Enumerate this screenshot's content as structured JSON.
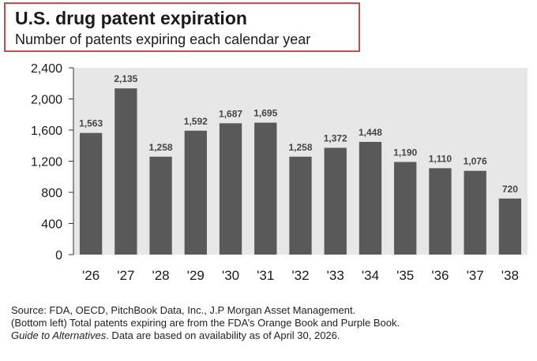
{
  "header": {
    "title": "U.S. drug patent expiration",
    "subtitle": "Number of patents expiring each calendar year"
  },
  "chart_data": {
    "type": "bar",
    "title": "U.S. drug patent expiration",
    "subtitle": "Number of patents expiring each calendar year",
    "categories": [
      "'26",
      "'27",
      "'28",
      "'29",
      "'30",
      "'31",
      "'32",
      "'33",
      "'34",
      "'35",
      "'36",
      "'37",
      "'38"
    ],
    "values": [
      1563,
      2135,
      1258,
      1592,
      1687,
      1695,
      1258,
      1372,
      1448,
      1190,
      1110,
      1076,
      720
    ],
    "data_labels": [
      "1,563",
      "2,135",
      "1,258",
      "1,592",
      "1,687",
      "1,695",
      "1,258",
      "1,372",
      "1,448",
      "1,190",
      "1,110",
      "1,076",
      "720"
    ],
    "yticks": [
      0,
      400,
      800,
      1200,
      1600,
      2000,
      2400
    ],
    "ytick_labels": [
      "0",
      "400",
      "800",
      "1,200",
      "1,600",
      "2,000",
      "2,400"
    ],
    "ylim": [
      0,
      2400
    ],
    "xlabel": "",
    "ylabel": "",
    "grid": false,
    "legend": "none",
    "bar_color": "#595959",
    "plot_background": "#e7e7e7"
  },
  "footnote": {
    "line1": "Source: FDA, OECD, PitchBook Data, Inc., J.P Morgan Asset Management.",
    "line2_prefix": "(Bottom left) Total patents expiring are from the FDA’s Orange Book and Purple Book.",
    "line3_italic": "Guide to Alternatives",
    "line3_rest": ". Data are based on availability as of April 30, 2026."
  }
}
